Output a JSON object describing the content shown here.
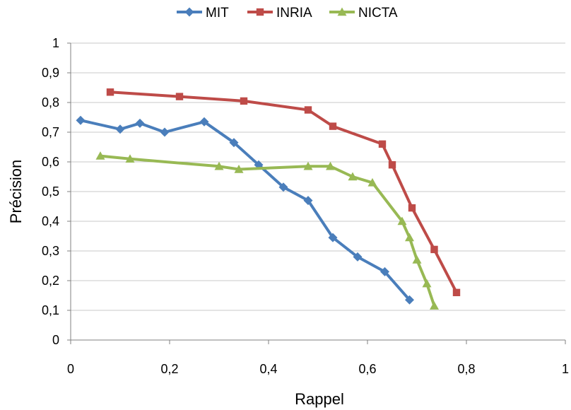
{
  "chart_data": {
    "type": "line",
    "title": "",
    "xlabel": "Rappel",
    "ylabel": "Précision",
    "xlim": [
      0,
      1
    ],
    "ylim": [
      0,
      1
    ],
    "x_ticks": [
      "0",
      "0,2",
      "0,4",
      "0,6",
      "0,8",
      "1"
    ],
    "y_ticks": [
      "0",
      "0,1",
      "0,2",
      "0,3",
      "0,4",
      "0,5",
      "0,6",
      "0,7",
      "0,8",
      "0,9",
      "1"
    ],
    "grid": "horizontal",
    "legend_position": "top",
    "series": [
      {
        "name": "MIT",
        "color": "#4a7ebb",
        "marker": "diamond",
        "points": [
          [
            0.02,
            0.74
          ],
          [
            0.1,
            0.71
          ],
          [
            0.14,
            0.73
          ],
          [
            0.19,
            0.7
          ],
          [
            0.27,
            0.735
          ],
          [
            0.33,
            0.665
          ],
          [
            0.38,
            0.59
          ],
          [
            0.43,
            0.515
          ],
          [
            0.48,
            0.47
          ],
          [
            0.53,
            0.345
          ],
          [
            0.58,
            0.28
          ],
          [
            0.635,
            0.23
          ],
          [
            0.685,
            0.135
          ]
        ]
      },
      {
        "name": "INRIA",
        "color": "#be4b48",
        "marker": "square",
        "points": [
          [
            0.08,
            0.835
          ],
          [
            0.22,
            0.82
          ],
          [
            0.35,
            0.805
          ],
          [
            0.48,
            0.775
          ],
          [
            0.53,
            0.72
          ],
          [
            0.63,
            0.66
          ],
          [
            0.65,
            0.59
          ],
          [
            0.69,
            0.445
          ],
          [
            0.735,
            0.305
          ],
          [
            0.78,
            0.16
          ]
        ]
      },
      {
        "name": "NICTA",
        "color": "#98b954",
        "marker": "triangle",
        "points": [
          [
            0.06,
            0.62
          ],
          [
            0.12,
            0.61
          ],
          [
            0.3,
            0.585
          ],
          [
            0.34,
            0.575
          ],
          [
            0.48,
            0.585
          ],
          [
            0.525,
            0.585
          ],
          [
            0.57,
            0.55
          ],
          [
            0.61,
            0.53
          ],
          [
            0.67,
            0.4
          ],
          [
            0.685,
            0.345
          ],
          [
            0.7,
            0.27
          ],
          [
            0.72,
            0.19
          ],
          [
            0.735,
            0.115
          ]
        ]
      }
    ]
  }
}
